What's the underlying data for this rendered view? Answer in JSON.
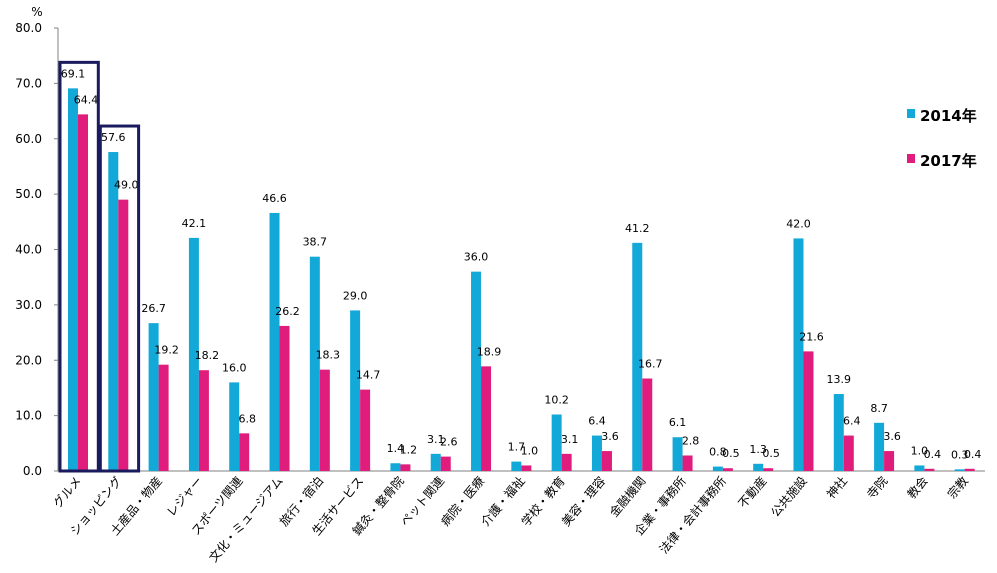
{
  "chart_data": {
    "type": "bar",
    "ylabel": "%",
    "ylim": [
      0,
      80
    ],
    "yticks": [
      "0.0",
      "10.0",
      "20.0",
      "30.0",
      "40.0",
      "50.0",
      "60.0",
      "70.0",
      "80.0"
    ],
    "grid": false,
    "legend_position": "right",
    "categories": [
      "グルメ",
      "ショッピング",
      "土産品・物産",
      "レジャー",
      "スポーツ関連",
      "文化・ミュージアム",
      "旅行・宿泊",
      "生活サービス",
      "鍼灸・整骨院",
      "ペット関連",
      "病院・医療",
      "介護・福祉",
      "学校・教育",
      "美容・理容",
      "金融機関",
      "企業・事務所",
      "法律・会計事務所",
      "不動産",
      "公共施設",
      "神社",
      "寺院",
      "教会",
      "宗教"
    ],
    "series": [
      {
        "name": "2014年",
        "color": "#12A8D8",
        "values": [
          69.1,
          57.6,
          26.7,
          42.1,
          16.0,
          46.6,
          38.7,
          29.0,
          1.4,
          3.1,
          36.0,
          1.7,
          10.2,
          6.4,
          41.2,
          6.1,
          0.8,
          1.3,
          42.0,
          13.9,
          8.7,
          1.0,
          0.3
        ],
        "labels": [
          "69.1",
          "57.6",
          "26.7",
          "42.1",
          "16.0",
          "46.6",
          "38.7",
          "29.0",
          "1.4",
          "3.1",
          "36.0",
          "1.7",
          "10.2",
          "6.4",
          "41.2",
          "6.1",
          "0.8",
          "1.3",
          "42.0",
          "13.9",
          "8.7",
          "1.0",
          "0.3"
        ]
      },
      {
        "name": "2017年",
        "color": "#E01C7C",
        "values": [
          64.4,
          49.0,
          19.2,
          18.2,
          6.8,
          26.2,
          18.3,
          14.7,
          1.2,
          2.6,
          18.9,
          1.0,
          3.1,
          3.6,
          16.7,
          2.8,
          0.5,
          0.5,
          21.6,
          6.4,
          3.6,
          0.4,
          0.4
        ],
        "labels": [
          "64.4",
          "49.0",
          "19.2",
          "18.2",
          "6.8",
          "26.2",
          "18.3",
          "14.7",
          "1.2",
          "2.6",
          "18.9",
          "1.0",
          "3.1",
          "3.6",
          "16.7",
          "2.8",
          "0.5",
          "0.5",
          "21.6",
          "6.4",
          "3.6",
          "0.4",
          "0.4"
        ]
      }
    ],
    "highlighted_categories": [
      "グルメ",
      "ショッピング"
    ],
    "highlight_color": "#1A1A5E"
  }
}
